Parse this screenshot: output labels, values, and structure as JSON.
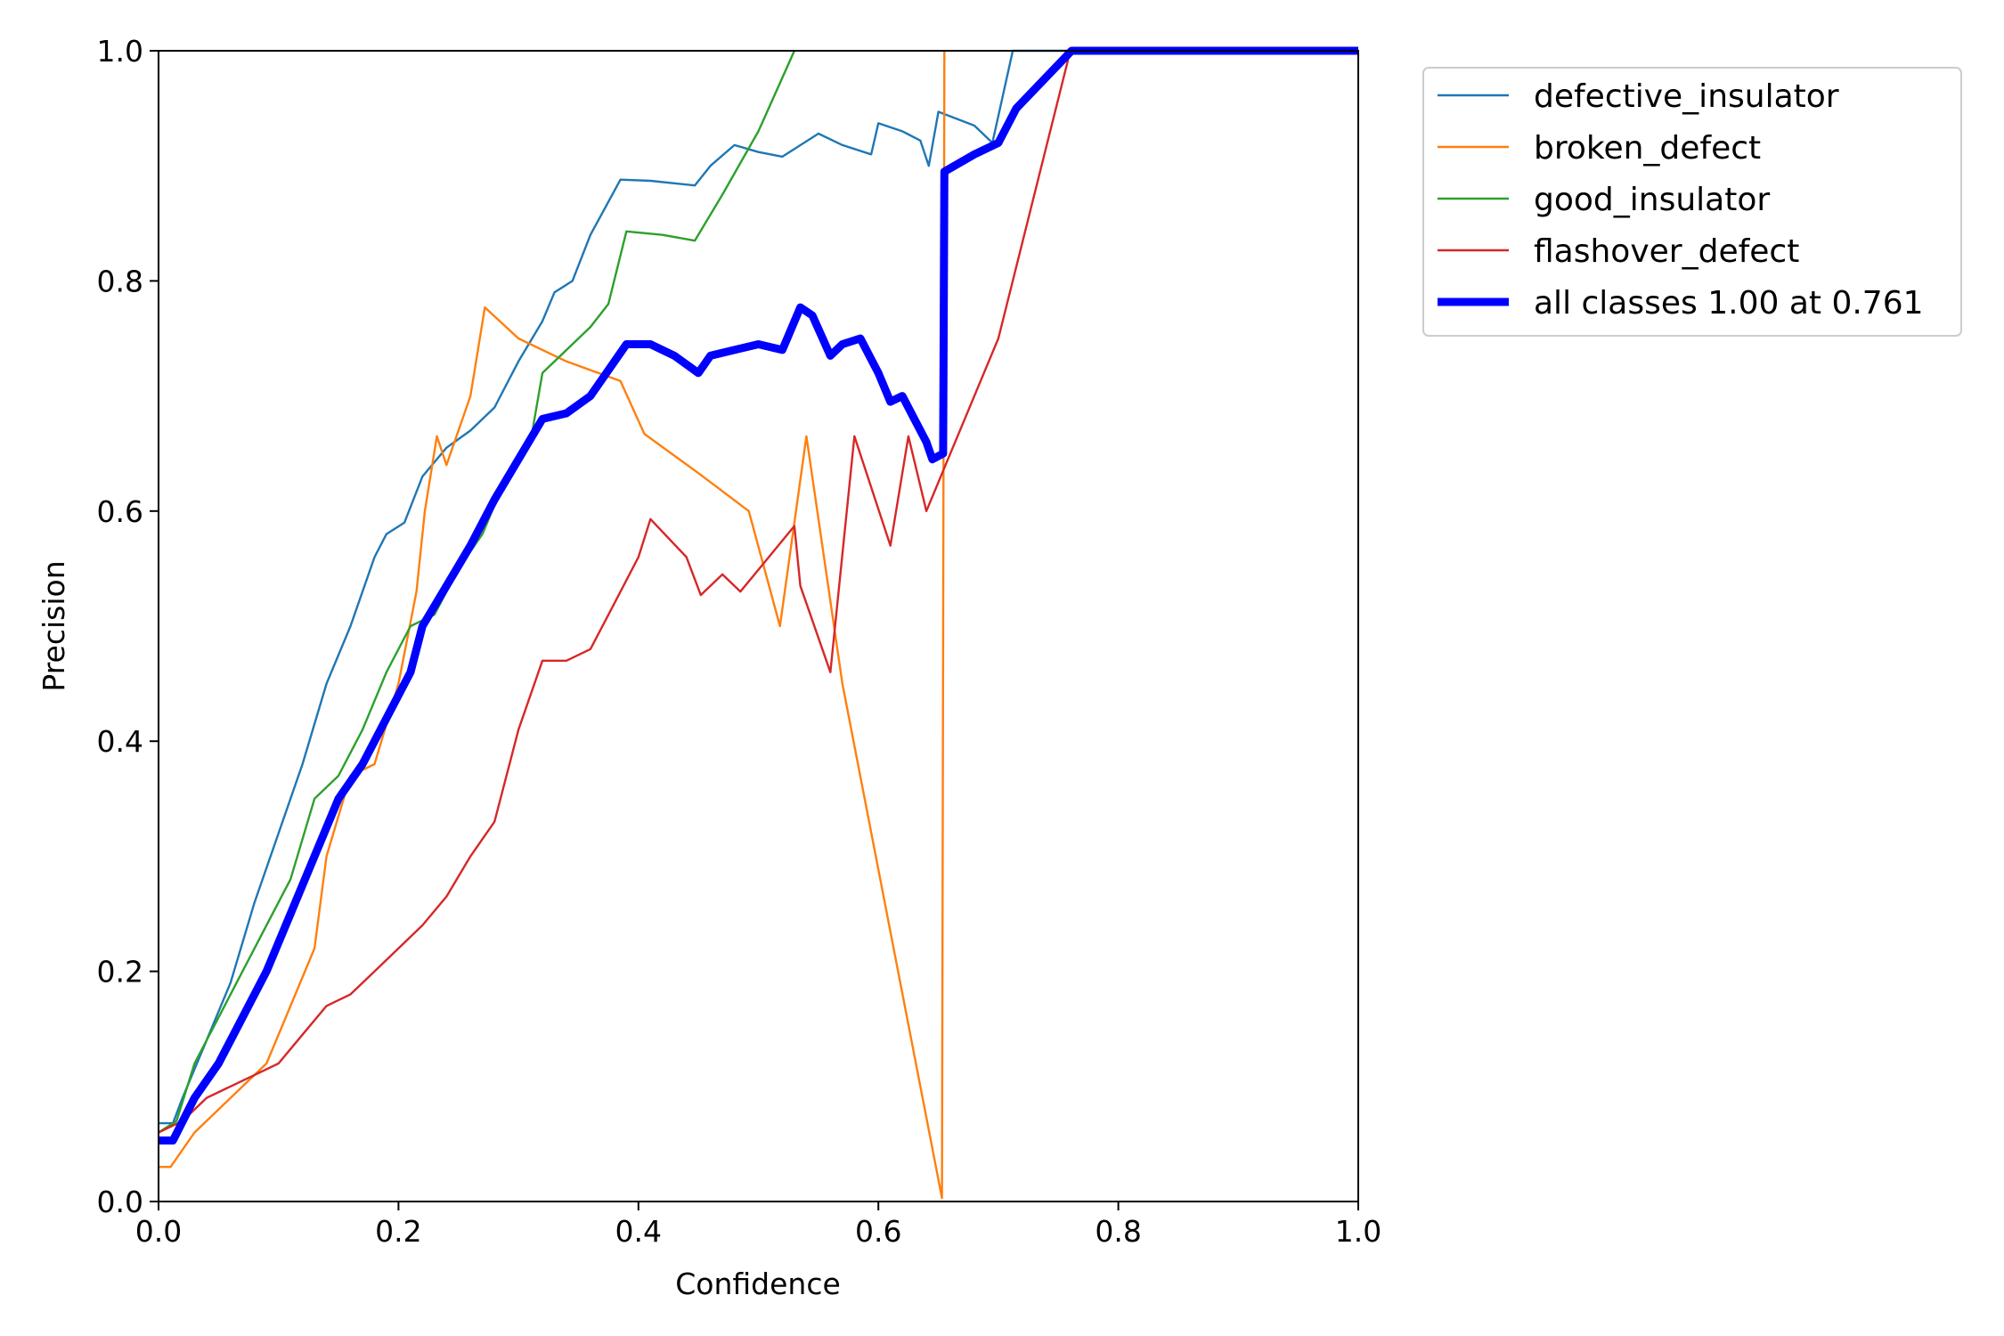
{
  "chart_data": {
    "type": "line",
    "title": "",
    "xlabel": "Confidence",
    "ylabel": "Precision",
    "xlim": [
      0,
      1
    ],
    "ylim": [
      0,
      1
    ],
    "xticks": [
      "0.0",
      "0.2",
      "0.4",
      "0.6",
      "0.8",
      "1.0"
    ],
    "yticks": [
      "0.0",
      "0.2",
      "0.4",
      "0.6",
      "0.8",
      "1.0"
    ],
    "grid": false,
    "legend_position": "outside-top-right",
    "series": [
      {
        "name": "defective_insulator",
        "color": "#1f77b4",
        "width": "thin",
        "points": [
          [
            0,
            0.068
          ],
          [
            0.012,
            0.068
          ],
          [
            0.02,
            0.09
          ],
          [
            0.04,
            0.14
          ],
          [
            0.06,
            0.19
          ],
          [
            0.08,
            0.26
          ],
          [
            0.1,
            0.32
          ],
          [
            0.12,
            0.38
          ],
          [
            0.14,
            0.45
          ],
          [
            0.16,
            0.5
          ],
          [
            0.18,
            0.56
          ],
          [
            0.19,
            0.58
          ],
          [
            0.205,
            0.59
          ],
          [
            0.22,
            0.63
          ],
          [
            0.24,
            0.655
          ],
          [
            0.26,
            0.67
          ],
          [
            0.28,
            0.69
          ],
          [
            0.3,
            0.73
          ],
          [
            0.32,
            0.765
          ],
          [
            0.33,
            0.79
          ],
          [
            0.345,
            0.8
          ],
          [
            0.36,
            0.84
          ],
          [
            0.385,
            0.888
          ],
          [
            0.41,
            0.887
          ],
          [
            0.447,
            0.883
          ],
          [
            0.46,
            0.9
          ],
          [
            0.48,
            0.918
          ],
          [
            0.5,
            0.912
          ],
          [
            0.52,
            0.908
          ],
          [
            0.55,
            0.928
          ],
          [
            0.57,
            0.918
          ],
          [
            0.594,
            0.91
          ],
          [
            0.6,
            0.937
          ],
          [
            0.62,
            0.93
          ],
          [
            0.635,
            0.922
          ],
          [
            0.642,
            0.9
          ],
          [
            0.65,
            0.947
          ],
          [
            0.68,
            0.935
          ],
          [
            0.695,
            0.92
          ],
          [
            0.712,
            1.0
          ],
          [
            1.0,
            1.0
          ]
        ]
      },
      {
        "name": "broken_defect",
        "color": "#ff7f0e",
        "width": "thin",
        "points": [
          [
            0,
            0.03
          ],
          [
            0.01,
            0.03
          ],
          [
            0.03,
            0.06
          ],
          [
            0.05,
            0.08
          ],
          [
            0.07,
            0.1
          ],
          [
            0.09,
            0.12
          ],
          [
            0.11,
            0.17
          ],
          [
            0.13,
            0.22
          ],
          [
            0.14,
            0.3
          ],
          [
            0.16,
            0.37
          ],
          [
            0.18,
            0.38
          ],
          [
            0.2,
            0.45
          ],
          [
            0.215,
            0.53
          ],
          [
            0.222,
            0.6
          ],
          [
            0.232,
            0.665
          ],
          [
            0.24,
            0.64
          ],
          [
            0.26,
            0.7
          ],
          [
            0.272,
            0.777
          ],
          [
            0.3,
            0.75
          ],
          [
            0.34,
            0.73
          ],
          [
            0.385,
            0.713
          ],
          [
            0.405,
            0.667
          ],
          [
            0.45,
            0.633
          ],
          [
            0.492,
            0.6
          ],
          [
            0.518,
            0.5
          ],
          [
            0.54,
            0.665
          ],
          [
            0.57,
            0.45
          ],
          [
            0.653,
            0.003
          ],
          [
            0.655,
            1.0
          ]
        ]
      },
      {
        "name": "good_insulator",
        "color": "#2ca02c",
        "width": "thin",
        "points": [
          [
            0,
            0.06
          ],
          [
            0.015,
            0.07
          ],
          [
            0.03,
            0.12
          ],
          [
            0.05,
            0.16
          ],
          [
            0.07,
            0.2
          ],
          [
            0.09,
            0.24
          ],
          [
            0.11,
            0.28
          ],
          [
            0.13,
            0.35
          ],
          [
            0.15,
            0.37
          ],
          [
            0.17,
            0.41
          ],
          [
            0.19,
            0.46
          ],
          [
            0.21,
            0.5
          ],
          [
            0.23,
            0.51
          ],
          [
            0.25,
            0.55
          ],
          [
            0.27,
            0.58
          ],
          [
            0.29,
            0.63
          ],
          [
            0.31,
            0.66
          ],
          [
            0.32,
            0.72
          ],
          [
            0.34,
            0.74
          ],
          [
            0.36,
            0.76
          ],
          [
            0.375,
            0.78
          ],
          [
            0.39,
            0.843
          ],
          [
            0.42,
            0.84
          ],
          [
            0.447,
            0.835
          ],
          [
            0.47,
            0.875
          ],
          [
            0.5,
            0.93
          ],
          [
            0.53,
            1.0
          ]
        ]
      },
      {
        "name": "flashover_defect",
        "color": "#d62728",
        "width": "thin",
        "points": [
          [
            0,
            0.06
          ],
          [
            0.02,
            0.07
          ],
          [
            0.04,
            0.09
          ],
          [
            0.06,
            0.1
          ],
          [
            0.08,
            0.11
          ],
          [
            0.1,
            0.12
          ],
          [
            0.12,
            0.145
          ],
          [
            0.14,
            0.17
          ],
          [
            0.16,
            0.18
          ],
          [
            0.18,
            0.2
          ],
          [
            0.2,
            0.22
          ],
          [
            0.22,
            0.24
          ],
          [
            0.24,
            0.265
          ],
          [
            0.26,
            0.3
          ],
          [
            0.28,
            0.33
          ],
          [
            0.3,
            0.41
          ],
          [
            0.32,
            0.47
          ],
          [
            0.34,
            0.47
          ],
          [
            0.36,
            0.48
          ],
          [
            0.38,
            0.52
          ],
          [
            0.4,
            0.56
          ],
          [
            0.41,
            0.593
          ],
          [
            0.44,
            0.56
          ],
          [
            0.452,
            0.527
          ],
          [
            0.47,
            0.545
          ],
          [
            0.485,
            0.53
          ],
          [
            0.53,
            0.587
          ],
          [
            0.535,
            0.535
          ],
          [
            0.56,
            0.46
          ],
          [
            0.58,
            0.665
          ],
          [
            0.61,
            0.57
          ],
          [
            0.625,
            0.665
          ],
          [
            0.64,
            0.6
          ],
          [
            0.66,
            0.65
          ],
          [
            0.7,
            0.75
          ],
          [
            0.76,
            1.0
          ],
          [
            1.0,
            1.0
          ]
        ]
      },
      {
        "name": "all classes 1.00 at 0.761",
        "color": "#0000ff",
        "width": "thick",
        "points": [
          [
            0,
            0.053
          ],
          [
            0.012,
            0.053
          ],
          [
            0.03,
            0.09
          ],
          [
            0.05,
            0.12
          ],
          [
            0.07,
            0.16
          ],
          [
            0.09,
            0.2
          ],
          [
            0.11,
            0.25
          ],
          [
            0.13,
            0.3
          ],
          [
            0.15,
            0.35
          ],
          [
            0.17,
            0.38
          ],
          [
            0.19,
            0.42
          ],
          [
            0.21,
            0.46
          ],
          [
            0.22,
            0.5
          ],
          [
            0.24,
            0.535
          ],
          [
            0.26,
            0.57
          ],
          [
            0.28,
            0.61
          ],
          [
            0.3,
            0.645
          ],
          [
            0.32,
            0.68
          ],
          [
            0.34,
            0.685
          ],
          [
            0.36,
            0.7
          ],
          [
            0.38,
            0.73
          ],
          [
            0.39,
            0.745
          ],
          [
            0.41,
            0.745
          ],
          [
            0.43,
            0.735
          ],
          [
            0.45,
            0.72
          ],
          [
            0.46,
            0.735
          ],
          [
            0.48,
            0.74
          ],
          [
            0.5,
            0.745
          ],
          [
            0.52,
            0.74
          ],
          [
            0.535,
            0.777
          ],
          [
            0.545,
            0.77
          ],
          [
            0.56,
            0.735
          ],
          [
            0.57,
            0.745
          ],
          [
            0.585,
            0.75
          ],
          [
            0.6,
            0.72
          ],
          [
            0.61,
            0.695
          ],
          [
            0.62,
            0.7
          ],
          [
            0.64,
            0.66
          ],
          [
            0.645,
            0.645
          ],
          [
            0.654,
            0.65
          ],
          [
            0.655,
            0.895
          ],
          [
            0.68,
            0.91
          ],
          [
            0.7,
            0.92
          ],
          [
            0.715,
            0.95
          ],
          [
            0.761,
            1.0
          ],
          [
            1.0,
            1.0
          ]
        ]
      }
    ]
  }
}
